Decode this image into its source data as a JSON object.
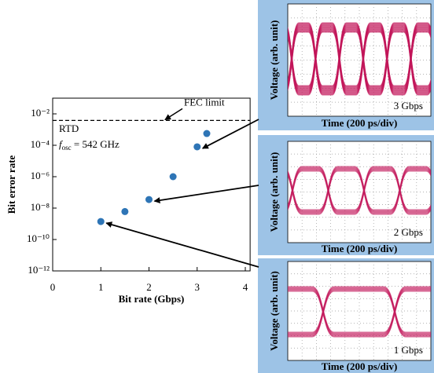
{
  "chart_data": {
    "type": "scatter",
    "x_label": "Bit rate (Gbps)",
    "y_label": "Bit error rate",
    "x": [
      1,
      1.5,
      2,
      2.5,
      3,
      3.2
    ],
    "values": [
      1.4e-09,
      6e-09,
      3.5e-08,
      1e-06,
      8e-05,
      0.00056
    ],
    "color": "#2e75b6",
    "xlim": [
      0,
      4.1
    ],
    "xticks": [
      0,
      1,
      2,
      3,
      4
    ],
    "ylim": [
      1e-12,
      0.1
    ],
    "log_y": true,
    "yticks": [
      {
        "value": 1e-12,
        "label": "10⁻¹²"
      },
      {
        "value": 1e-10,
        "label": "10⁻¹⁰"
      },
      {
        "value": 1e-08,
        "label": "10⁻⁸"
      },
      {
        "value": 1e-06,
        "label": "10⁻⁶"
      },
      {
        "value": 0.0001,
        "label": "10⁻⁴"
      },
      {
        "value": 0.01,
        "label": "10⁻²"
      }
    ],
    "fec_limit": {
      "value": 0.0038,
      "label": "FEC limit"
    },
    "device": "RTD",
    "osc_symbol": "f",
    "osc_subscript": "osc",
    "osc_value": " = 542 GHz"
  },
  "insets": [
    {
      "rate": "3 Gbps",
      "x_label": "Time (200 ps/div)",
      "y_label": "Voltage (arb. unit)"
    },
    {
      "rate": "2 Gbps",
      "x_label": "Time (200 ps/div)",
      "y_label": "Voltage (arb. unit)"
    },
    {
      "rate": "1 Gbps",
      "x_label": "Time (200 ps/div)",
      "y_label": "Voltage (arb. unit)"
    }
  ]
}
